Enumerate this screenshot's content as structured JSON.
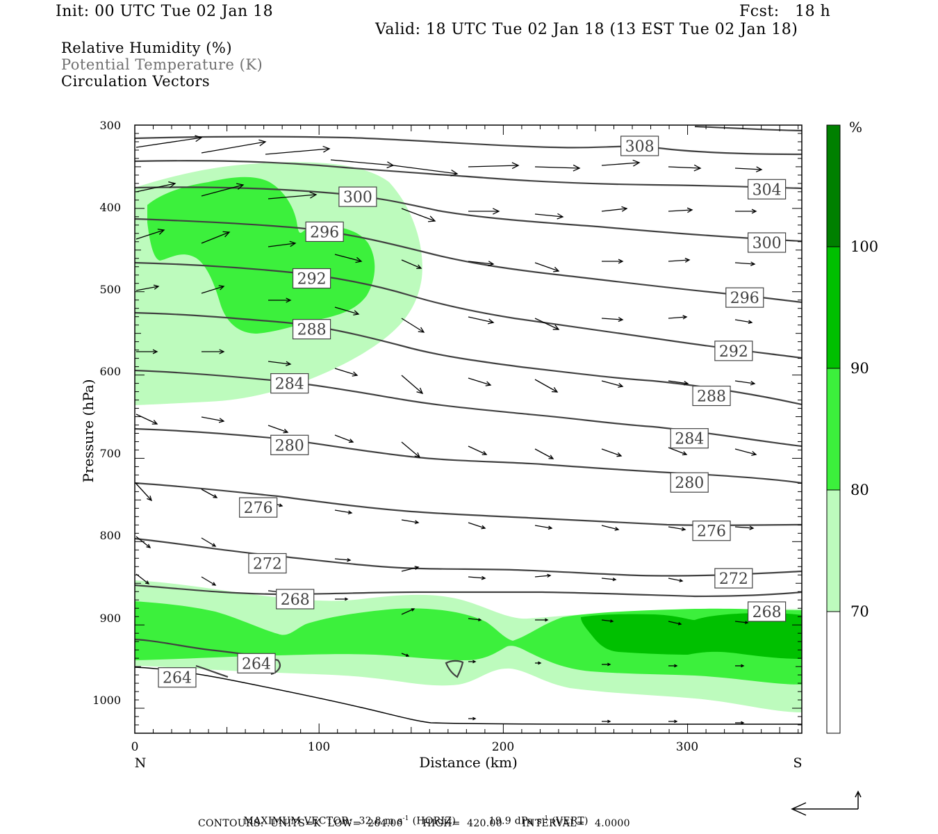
{
  "header": {
    "init": "Init: 00 UTC Tue 02 Jan 18",
    "fcst": "Fcst:   18 h",
    "valid": "Valid: 18 UTC Tue 02 Jan 18 (13 EST Tue 02 Jan 18)"
  },
  "legend": {
    "rh": "Relative Humidity (%)",
    "theta": "Potential Temperature (K)",
    "vectors": "Circulation Vectors"
  },
  "footer": {
    "max_vector_label": "MAXIMUM VECTOR:",
    "horiz_value": "32.8 m s",
    "horiz_unit": "(HORIZ)",
    "vert_value": "19.9 dPa s",
    "vert_unit": "(VERT)",
    "exp": "-1",
    "contours": "CONTOURS:  UNITS=K  LOW=  264.00      HIGH=  420.00      INTERVAL=   4.0000"
  },
  "colors": {
    "rh70": "#bdfbbd",
    "rh80": "#3cf03c",
    "rh90": "#00c000",
    "rh100": "#008000",
    "contour": "#404040",
    "vector": "#000000"
  },
  "chart_data": {
    "type": "cross-section",
    "xlabel": "Distance (km)",
    "ylabel": "Pressure (hPa)",
    "xlim": [
      0,
      362
    ],
    "ylim": [
      300,
      1030
    ],
    "y_scale": "linear",
    "x_ticks": [
      0,
      100,
      200,
      300
    ],
    "y_ticks": [
      300,
      400,
      500,
      600,
      700,
      800,
      900,
      1000
    ],
    "left_end_label": "N",
    "right_end_label": "S",
    "colorbar": {
      "unit": "%",
      "levels": [
        70,
        80,
        90,
        100
      ],
      "colors": [
        "#ffffff",
        "#bdfbbd",
        "#3cf03c",
        "#00c000",
        "#008000"
      ]
    },
    "contour_labels": [
      {
        "value": "308",
        "x": 274,
        "p": 325
      },
      {
        "value": "304",
        "x": 343,
        "p": 377
      },
      {
        "value": "300",
        "x": 121,
        "p": 386
      },
      {
        "value": "300",
        "x": 343,
        "p": 441
      },
      {
        "value": "296",
        "x": 103,
        "p": 428
      },
      {
        "value": "296",
        "x": 331,
        "p": 507
      },
      {
        "value": "292",
        "x": 96,
        "p": 484
      },
      {
        "value": "292",
        "x": 325,
        "p": 571
      },
      {
        "value": "288",
        "x": 96,
        "p": 545
      },
      {
        "value": "288",
        "x": 313,
        "p": 625
      },
      {
        "value": "284",
        "x": 84,
        "p": 610
      },
      {
        "value": "284",
        "x": 301,
        "p": 676
      },
      {
        "value": "280",
        "x": 84,
        "p": 684
      },
      {
        "value": "280",
        "x": 301,
        "p": 729
      },
      {
        "value": "276",
        "x": 67,
        "p": 759
      },
      {
        "value": "276",
        "x": 313,
        "p": 787
      },
      {
        "value": "272",
        "x": 72,
        "p": 826
      },
      {
        "value": "272",
        "x": 325,
        "p": 844
      },
      {
        "value": "268",
        "x": 87,
        "p": 869
      },
      {
        "value": "268",
        "x": 343,
        "p": 884
      },
      {
        "value": "264",
        "x": 66,
        "p": 946
      },
      {
        "value": "264",
        "x": 23,
        "p": 963
      }
    ]
  }
}
